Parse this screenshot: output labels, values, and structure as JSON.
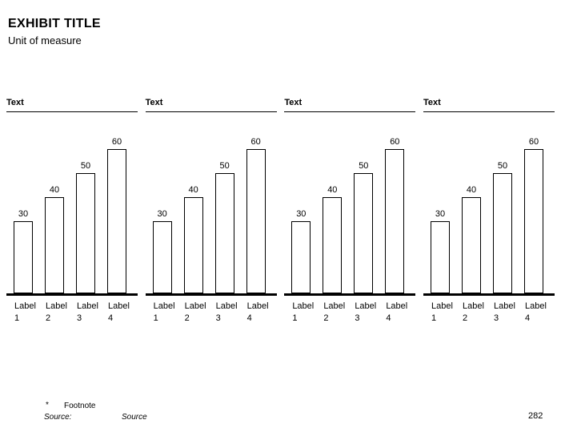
{
  "slide": {
    "title": "EXHIBIT TITLE",
    "subtitle": "Unit of measure",
    "page_number": "282"
  },
  "footer": {
    "footnote_marker": "*",
    "footnote_text": "Footnote",
    "source_label": "Source:",
    "source_text": "Source"
  },
  "colors": {
    "ink": "#000000",
    "background": "#ffffff",
    "bar_fill": "#ffffff",
    "bar_border": "#000000"
  },
  "chart_data": [
    {
      "type": "bar",
      "title": "Text",
      "categories": [
        "Label 1",
        "Label 2",
        "Label 3",
        "Label 4"
      ],
      "values": [
        30,
        40,
        50,
        60
      ],
      "value_labels_shown": true,
      "ylim": [
        0,
        65
      ],
      "grid": false,
      "legend": "none"
    },
    {
      "type": "bar",
      "title": "Text",
      "categories": [
        "Label 1",
        "Label 2",
        "Label 3",
        "Label 4"
      ],
      "values": [
        30,
        40,
        50,
        60
      ],
      "value_labels_shown": true,
      "ylim": [
        0,
        65
      ],
      "grid": false,
      "legend": "none"
    },
    {
      "type": "bar",
      "title": "Text",
      "categories": [
        "Label 1",
        "Label 2",
        "Label 3",
        "Label 4"
      ],
      "values": [
        30,
        40,
        50,
        60
      ],
      "value_labels_shown": true,
      "ylim": [
        0,
        65
      ],
      "grid": false,
      "legend": "none"
    },
    {
      "type": "bar",
      "title": "Text",
      "categories": [
        "Label 1",
        "Label 2",
        "Label 3",
        "Label 4"
      ],
      "values": [
        30,
        40,
        50,
        60
      ],
      "value_labels_shown": true,
      "ylim": [
        0,
        65
      ],
      "grid": false,
      "legend": "none"
    }
  ]
}
